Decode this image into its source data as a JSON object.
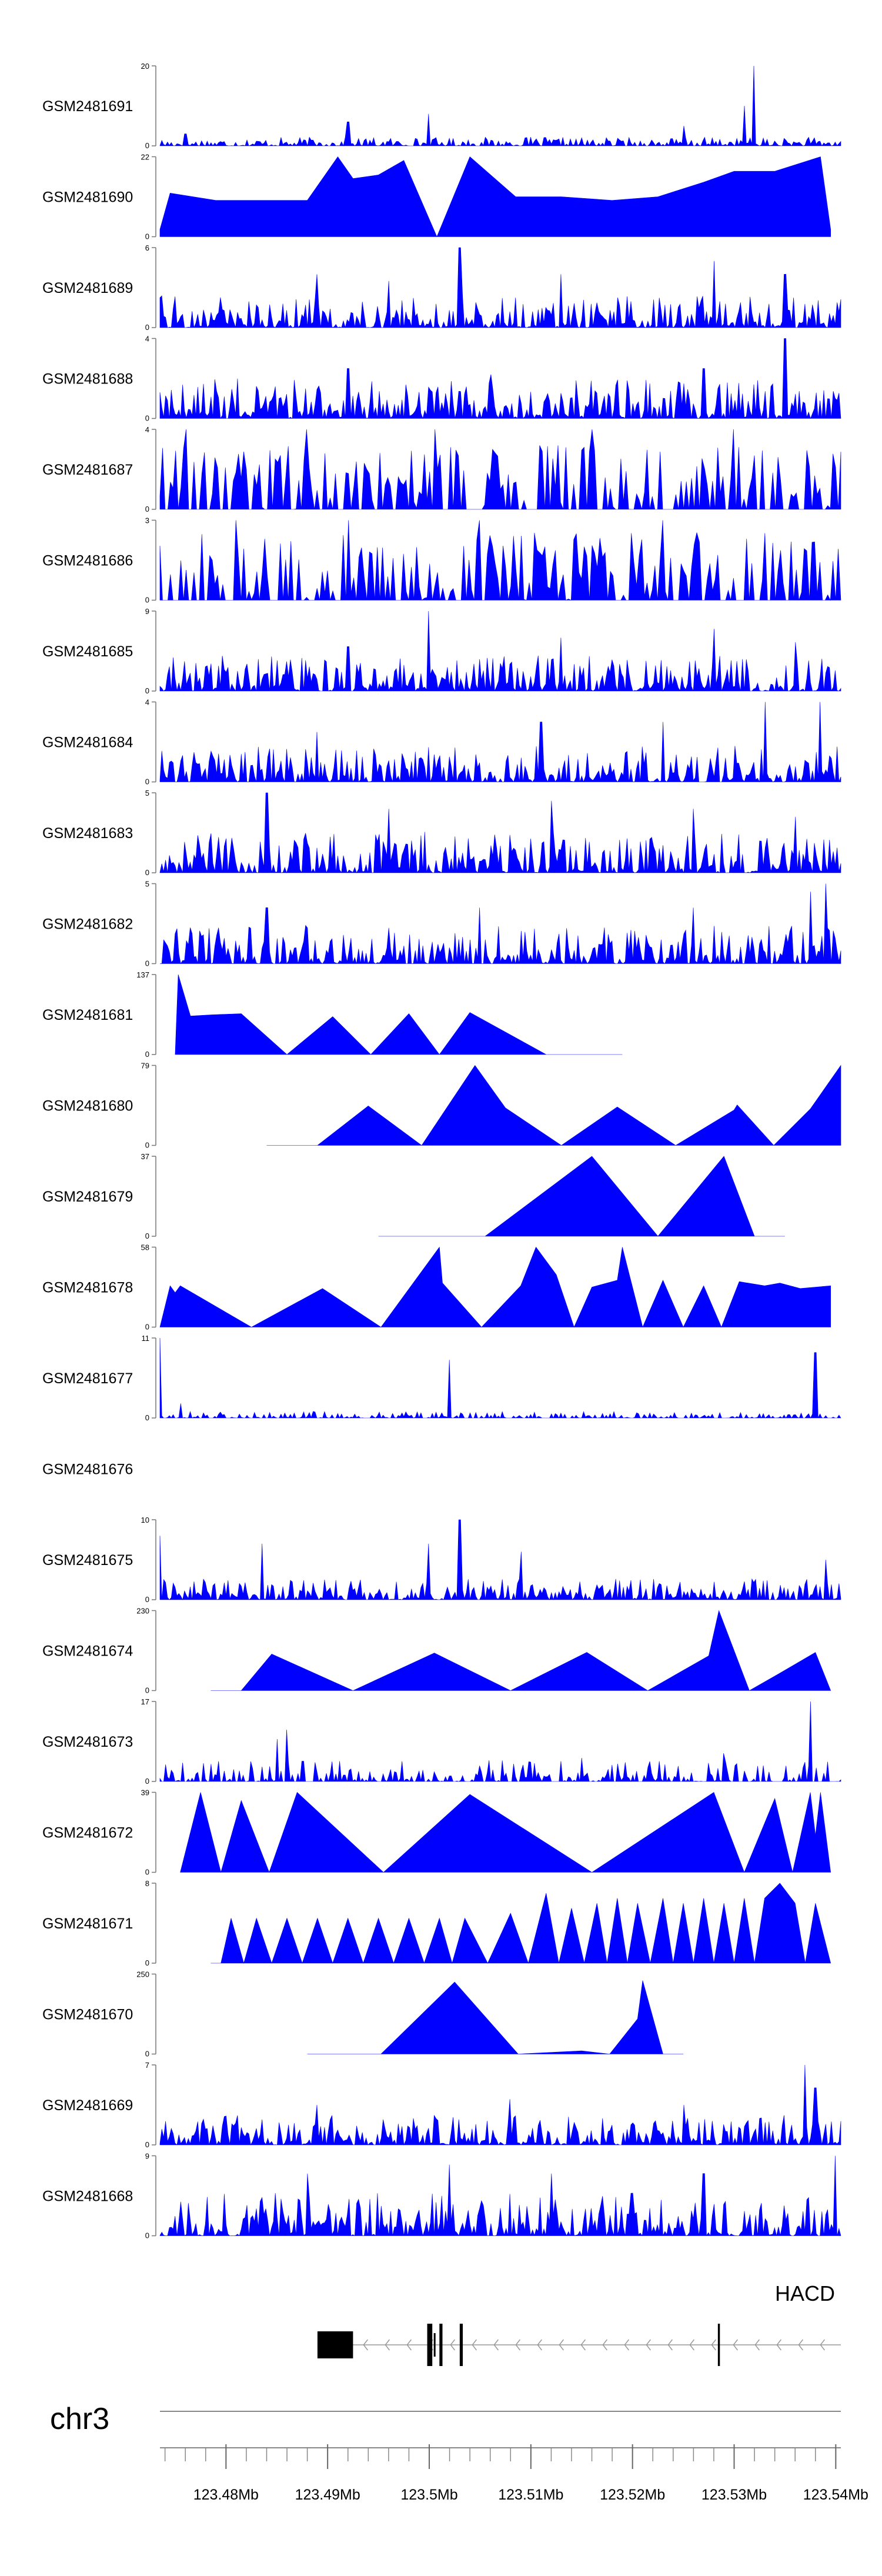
{
  "chart_data": {
    "type": "area",
    "chromosome": "chr3",
    "x_unit": "Mb",
    "x_range": [
      123.4735,
      123.5405
    ],
    "x_ticks": [
      "123.48Mb",
      "123.49Mb",
      "123.5Mb",
      "123.51Mb",
      "123.52Mb",
      "123.53Mb",
      "123.54Mb"
    ],
    "x_tick_values": [
      123.48,
      123.49,
      123.5,
      123.51,
      123.52,
      123.53,
      123.54
    ],
    "minor_tick_step": 0.002,
    "gene": {
      "name": "HACD",
      "strand": "-",
      "start": 123.489,
      "end": 123.5405,
      "exons": [
        [
          123.489,
          123.4925
        ],
        [
          123.4998,
          123.5003
        ],
        [
          123.501,
          123.5013
        ],
        [
          123.503,
          123.5033
        ],
        [
          123.5284,
          123.5286
        ]
      ]
    },
    "tracks": [
      {
        "name": "GSM2481691",
        "ylim": [
          0,
          20
        ],
        "ytick_labels": [
          "0",
          "20"
        ],
        "pattern": "dense",
        "noise": 2.2,
        "peaks": [
          [
            123.532,
            20
          ],
          [
            123.531,
            10
          ],
          [
            123.5,
            8
          ],
          [
            123.492,
            6
          ],
          [
            123.525,
            5
          ],
          [
            123.476,
            3
          ]
        ]
      },
      {
        "name": "GSM2481690",
        "ylim": [
          0,
          22
        ],
        "ytick_labels": [
          "0",
          "22"
        ],
        "pattern": "tri",
        "gap": 0.0022,
        "points": [
          [
            123.4735,
            2
          ],
          [
            123.4745,
            12
          ],
          [
            123.479,
            10
          ],
          [
            123.483,
            10
          ],
          [
            123.488,
            10
          ],
          [
            123.491,
            22
          ],
          [
            123.4925,
            16
          ],
          [
            123.495,
            17
          ],
          [
            123.4975,
            21
          ],
          [
            123.504,
            22
          ],
          [
            123.5085,
            11
          ],
          [
            123.513,
            11
          ],
          [
            123.518,
            10
          ],
          [
            123.5225,
            11
          ],
          [
            123.527,
            15
          ],
          [
            123.53,
            18
          ],
          [
            123.534,
            18
          ],
          [
            123.5385,
            22
          ],
          [
            123.5395,
            2
          ]
        ]
      },
      {
        "name": "GSM2481689",
        "ylim": [
          0,
          6
        ],
        "ytick_labels": [
          "0",
          "6"
        ],
        "pattern": "dense",
        "noise": 2.4,
        "peaks": [
          [
            123.503,
            6
          ],
          [
            123.528,
            5
          ],
          [
            123.489,
            4
          ],
          [
            123.513,
            4
          ],
          [
            123.535,
            4
          ],
          [
            123.496,
            3.5
          ]
        ]
      },
      {
        "name": "GSM2481688",
        "ylim": [
          0,
          4
        ],
        "ytick_labels": [
          "0",
          "4"
        ],
        "pattern": "dense",
        "noise": 2.0,
        "peaks": [
          [
            123.535,
            4
          ],
          [
            123.527,
            2.5
          ],
          [
            123.492,
            2.5
          ],
          [
            123.506,
            2.2
          ]
        ]
      },
      {
        "name": "GSM2481687",
        "ylim": [
          0,
          4
        ],
        "ytick_labels": [
          "0",
          "4"
        ],
        "pattern": "spiky",
        "noise": 3.2,
        "peaks": [
          [
            123.476,
            4
          ],
          [
            123.488,
            4
          ],
          [
            123.5005,
            4
          ],
          [
            123.516,
            4
          ],
          [
            123.53,
            4
          ]
        ]
      },
      {
        "name": "GSM2481686",
        "ylim": [
          0,
          3
        ],
        "ytick_labels": [
          "0",
          "3"
        ],
        "pattern": "spiky",
        "noise": 2.6,
        "peaks": [
          [
            123.481,
            3
          ],
          [
            123.492,
            3
          ],
          [
            123.505,
            3
          ],
          [
            123.523,
            3
          ]
        ]
      },
      {
        "name": "GSM2481685",
        "ylim": [
          0,
          9
        ],
        "ytick_labels": [
          "0",
          "9"
        ],
        "pattern": "dense",
        "noise": 4.0,
        "peaks": [
          [
            123.5,
            9
          ],
          [
            123.528,
            7
          ],
          [
            123.513,
            6
          ],
          [
            123.536,
            5.5
          ],
          [
            123.492,
            5
          ]
        ]
      },
      {
        "name": "GSM2481684",
        "ylim": [
          0,
          4
        ],
        "ytick_labels": [
          "0",
          "4"
        ],
        "pattern": "dense",
        "noise": 1.8,
        "peaks": [
          [
            123.5385,
            4
          ],
          [
            123.533,
            4
          ],
          [
            123.511,
            3
          ],
          [
            123.523,
            3
          ],
          [
            123.489,
            2.5
          ]
        ]
      },
      {
        "name": "GSM2481683",
        "ylim": [
          0,
          5
        ],
        "ytick_labels": [
          "0",
          "5"
        ],
        "pattern": "dense",
        "noise": 2.6,
        "peaks": [
          [
            123.484,
            5
          ],
          [
            123.512,
            4.5
          ],
          [
            123.526,
            4
          ],
          [
            123.496,
            4
          ],
          [
            123.536,
            3.5
          ]
        ]
      },
      {
        "name": "GSM2481682",
        "ylim": [
          0,
          5
        ],
        "ytick_labels": [
          "0",
          "5"
        ],
        "pattern": "dense",
        "noise": 2.4,
        "peaks": [
          [
            123.539,
            5
          ],
          [
            123.5375,
            4.5
          ],
          [
            123.526,
            3.5
          ],
          [
            123.484,
            3.5
          ],
          [
            123.505,
            3.5
          ]
        ]
      },
      {
        "name": "GSM2481681",
        "ylim": [
          0,
          137
        ],
        "ytick_labels": [
          "0",
          "137"
        ],
        "pattern": "tri",
        "gap": 0.0018,
        "points": [
          [
            123.475,
            0
          ],
          [
            123.4753,
            137
          ],
          [
            123.4765,
            66
          ],
          [
            123.4785,
            68
          ],
          [
            123.4815,
            70
          ],
          [
            123.4905,
            65
          ],
          [
            123.498,
            70
          ],
          [
            123.504,
            72
          ],
          [
            123.519,
            0
          ]
        ]
      },
      {
        "name": "GSM2481680",
        "ylim": [
          0,
          79
        ],
        "ytick_labels": [
          "0",
          "79"
        ],
        "pattern": "tri",
        "gap": 0.002,
        "points": [
          [
            123.484,
            0
          ],
          [
            123.494,
            39
          ],
          [
            123.5045,
            79
          ],
          [
            123.5075,
            37
          ],
          [
            123.5185,
            38
          ],
          [
            123.53,
            35
          ],
          [
            123.5303,
            40
          ],
          [
            123.5375,
            36
          ],
          [
            123.5405,
            79
          ]
        ]
      },
      {
        "name": "GSM2481679",
        "ylim": [
          0,
          37
        ],
        "ytick_labels": [
          "0",
          "37"
        ],
        "pattern": "tri",
        "gap": 0.001,
        "points": [
          [
            123.495,
            0
          ],
          [
            123.516,
            37
          ],
          [
            123.529,
            37
          ],
          [
            123.535,
            0
          ]
        ]
      },
      {
        "name": "GSM2481678",
        "ylim": [
          0,
          58
        ],
        "ytick_labels": [
          "0",
          "58"
        ],
        "pattern": "tri",
        "gap": 0.0014,
        "points": [
          [
            123.4735,
            0
          ],
          [
            123.4745,
            30
          ],
          [
            123.475,
            25
          ],
          [
            123.4755,
            30
          ],
          [
            123.4895,
            28
          ],
          [
            123.501,
            58
          ],
          [
            123.5013,
            32
          ],
          [
            123.509,
            30
          ],
          [
            123.5105,
            58
          ],
          [
            123.5125,
            38
          ],
          [
            123.516,
            29
          ],
          [
            123.5185,
            34
          ],
          [
            123.519,
            58
          ],
          [
            123.523,
            34
          ],
          [
            123.527,
            30
          ],
          [
            123.5305,
            33
          ],
          [
            123.533,
            30
          ],
          [
            123.5345,
            32
          ],
          [
            123.5365,
            28
          ],
          [
            123.5395,
            30
          ]
        ]
      },
      {
        "name": "GSM2481677",
        "ylim": [
          0,
          11
        ],
        "ytick_labels": [
          "0",
          "11"
        ],
        "pattern": "sparse",
        "noise": 0.9,
        "peaks": [
          [
            123.4735,
            11
          ],
          [
            123.502,
            8
          ],
          [
            123.538,
            9
          ],
          [
            123.4755,
            2
          ]
        ]
      },
      {
        "name": "GSM2481676",
        "ylim": null,
        "ytick_labels": [],
        "pattern": "empty"
      },
      {
        "name": "GSM2481675",
        "ylim": [
          0,
          10
        ],
        "ytick_labels": [
          "0",
          "10"
        ],
        "pattern": "dense",
        "noise": 2.6,
        "peaks": [
          [
            123.503,
            10
          ],
          [
            123.4735,
            8
          ],
          [
            123.4835,
            7
          ],
          [
            123.5,
            7
          ],
          [
            123.509,
            6
          ],
          [
            123.539,
            5
          ]
        ]
      },
      {
        "name": "GSM2481674",
        "ylim": [
          0,
          230
        ],
        "ytick_labels": [
          "0",
          "230"
        ],
        "pattern": "tri",
        "gap": 0.0015,
        "points": [
          [
            123.4785,
            0
          ],
          [
            123.4845,
            105
          ],
          [
            123.5005,
            108
          ],
          [
            123.5155,
            110
          ],
          [
            123.5275,
            100
          ],
          [
            123.5285,
            230
          ],
          [
            123.5345,
            50
          ],
          [
            123.538,
            110
          ],
          [
            123.5395,
            0
          ]
        ]
      },
      {
        "name": "GSM2481673",
        "ylim": [
          0,
          17
        ],
        "ytick_labels": [
          "0",
          "17"
        ],
        "pattern": "sparse",
        "noise": 4.5,
        "peaks": [
          [
            123.5375,
            17
          ],
          [
            123.486,
            11
          ],
          [
            123.485,
            9
          ],
          [
            123.529,
            6
          ],
          [
            123.515,
            5
          ]
        ]
      },
      {
        "name": "GSM2481672",
        "ylim": [
          0,
          39
        ],
        "ytick_labels": [
          "0",
          "39"
        ],
        "pattern": "tri",
        "gap": 0.001,
        "points": [
          [
            123.4755,
            0
          ],
          [
            123.4775,
            39
          ],
          [
            123.4815,
            35
          ],
          [
            123.487,
            39
          ],
          [
            123.504,
            38
          ],
          [
            123.528,
            39
          ],
          [
            123.534,
            36
          ],
          [
            123.5375,
            39
          ],
          [
            123.538,
            18
          ],
          [
            123.5385,
            39
          ],
          [
            123.5395,
            0
          ]
        ]
      },
      {
        "name": "GSM2481671",
        "ylim": [
          0,
          8
        ],
        "ytick_labels": [
          "0",
          "8"
        ],
        "pattern": "tri",
        "gap": 0.0008,
        "points": [
          [
            123.4785,
            0
          ],
          [
            123.4805,
            4.5
          ],
          [
            123.483,
            4.5
          ],
          [
            123.486,
            4.5
          ],
          [
            123.489,
            4.5
          ],
          [
            123.492,
            4.5
          ],
          [
            123.495,
            4.5
          ],
          [
            123.498,
            4.5
          ],
          [
            123.501,
            4.5
          ],
          [
            123.5035,
            4.5
          ],
          [
            123.508,
            5
          ],
          [
            123.5115,
            7
          ],
          [
            123.514,
            5.5
          ],
          [
            123.5165,
            6
          ],
          [
            123.5185,
            6.5
          ],
          [
            123.5205,
            6
          ],
          [
            123.523,
            6.5
          ],
          [
            123.525,
            6
          ],
          [
            123.527,
            6.5
          ],
          [
            123.529,
            6
          ],
          [
            123.531,
            6.5
          ],
          [
            123.533,
            6.5
          ],
          [
            123.5345,
            8
          ],
          [
            123.536,
            6
          ],
          [
            123.538,
            6
          ],
          [
            123.5395,
            0
          ]
        ]
      },
      {
        "name": "GSM2481670",
        "ylim": [
          0,
          250
        ],
        "ytick_labels": [
          "0",
          "250"
        ],
        "pattern": "tri",
        "gap": 0.001,
        "points": [
          [
            123.488,
            0
          ],
          [
            123.5025,
            225
          ],
          [
            123.515,
            10
          ],
          [
            123.5205,
            110
          ],
          [
            123.521,
            230
          ],
          [
            123.525,
            0
          ]
        ]
      },
      {
        "name": "GSM2481669",
        "ylim": [
          0,
          7
        ],
        "ytick_labels": [
          "0",
          "7"
        ],
        "pattern": "dense",
        "noise": 2.6,
        "peaks": [
          [
            123.537,
            7
          ],
          [
            123.538,
            5
          ],
          [
            123.508,
            4
          ],
          [
            123.489,
            3.5
          ],
          [
            123.525,
            3.5
          ]
        ]
      },
      {
        "name": "GSM2481668",
        "ylim": [
          0,
          9
        ],
        "ytick_labels": [
          "0",
          "9"
        ],
        "pattern": "dense",
        "noise": 4.8,
        "peaks": [
          [
            123.502,
            8
          ],
          [
            123.488,
            7
          ],
          [
            123.512,
            7
          ],
          [
            123.527,
            7
          ],
          [
            123.54,
            9
          ]
        ]
      }
    ]
  }
}
